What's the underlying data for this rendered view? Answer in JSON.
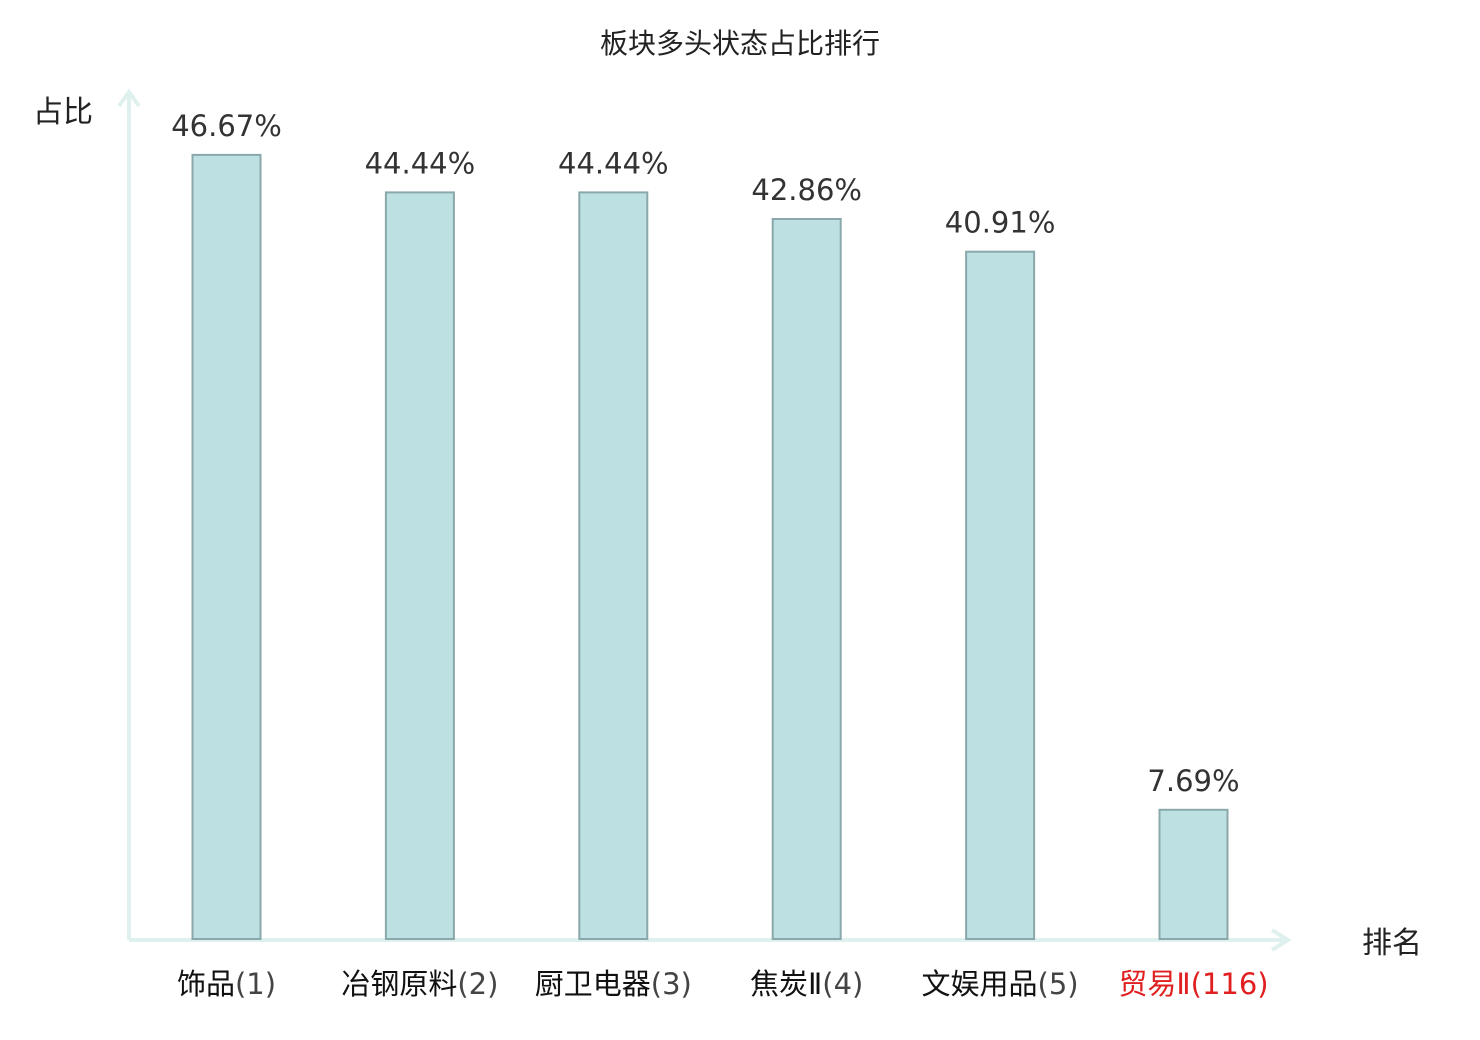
{
  "chart_data": {
    "type": "bar",
    "title": "板块多头状态占比排行",
    "ylabel": "占比",
    "xlabel": "排名",
    "categories": [
      {
        "name": "饰品",
        "rank": "(1)"
      },
      {
        "name": "冶钢原料",
        "rank": "(2)"
      },
      {
        "name": "厨卫电器",
        "rank": "(3)"
      },
      {
        "name": "焦炭Ⅱ",
        "rank": "(4)"
      },
      {
        "name": "文娱用品",
        "rank": "(5)"
      },
      {
        "name": "贸易Ⅱ",
        "rank": "(116)"
      }
    ],
    "values": [
      46.67,
      44.44,
      44.44,
      42.86,
      40.91,
      7.69
    ],
    "value_labels": [
      "46.67%",
      "44.44%",
      "44.44%",
      "42.86%",
      "40.91%",
      "7.69%"
    ],
    "ylim": [
      0,
      50
    ],
    "grid": false,
    "highlight_index": 5,
    "colors": {
      "bar_fill": "#bde0e3",
      "bar_stroke": "#8aa8ab",
      "axis": "#dff1ef",
      "highlight_text": "#e02020",
      "label_text": "#111111",
      "rank_text": "#444444"
    }
  }
}
